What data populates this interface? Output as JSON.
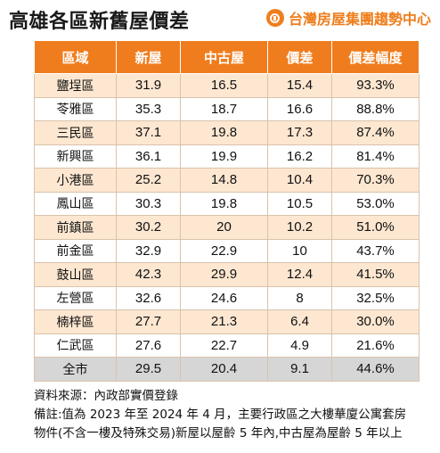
{
  "title": "高雄各區新舊屋價差",
  "brand": {
    "name": "台灣房屋集團趨勢中心",
    "icon": "house-logo-icon",
    "color": "#ef7d1c"
  },
  "table": {
    "headers": [
      "區域",
      "新屋",
      "中古屋",
      "價差",
      "價差幅度"
    ],
    "rows": [
      [
        "鹽埕區",
        "31.9",
        "16.5",
        "15.4",
        "93.3%"
      ],
      [
        "苓雅區",
        "35.3",
        "18.7",
        "16.6",
        "88.8%"
      ],
      [
        "三民區",
        "37.1",
        "19.8",
        "17.3",
        "87.4%"
      ],
      [
        "新興區",
        "36.1",
        "19.9",
        "16.2",
        "81.4%"
      ],
      [
        "小港區",
        "25.2",
        "14.8",
        "10.4",
        "70.3%"
      ],
      [
        "鳳山區",
        "30.3",
        "19.8",
        "10.5",
        "53.0%"
      ],
      [
        "前鎮區",
        "30.2",
        "20",
        "10.2",
        "51.0%"
      ],
      [
        "前金區",
        "32.9",
        "22.9",
        "10",
        "43.7%"
      ],
      [
        "鼓山區",
        "42.3",
        "29.9",
        "12.4",
        "41.5%"
      ],
      [
        "左營區",
        "32.6",
        "24.6",
        "8",
        "32.5%"
      ],
      [
        "楠梓區",
        "27.7",
        "21.3",
        "6.4",
        "30.0%"
      ],
      [
        "仁武區",
        "27.6",
        "22.7",
        "4.9",
        "21.6%"
      ]
    ],
    "total": [
      "全市",
      "29.5",
      "20.4",
      "9.1",
      "44.6%"
    ]
  },
  "notes": {
    "source": "資料來源：內政部實價登錄",
    "remark_line1": "備註:值為 2023 年至 2024 年 4 月，主要行政區之大樓華廈公寓套房",
    "remark_line2": "物件(不含一樓及特殊交易)新屋以屋齡 5 年內,中古屋為屋齡 5 年以上"
  },
  "colors": {
    "header_bg": "#f07d1d",
    "odd_row": "#fde7d1",
    "even_row": "#ffffff",
    "total_row": "#d6d6d6"
  }
}
